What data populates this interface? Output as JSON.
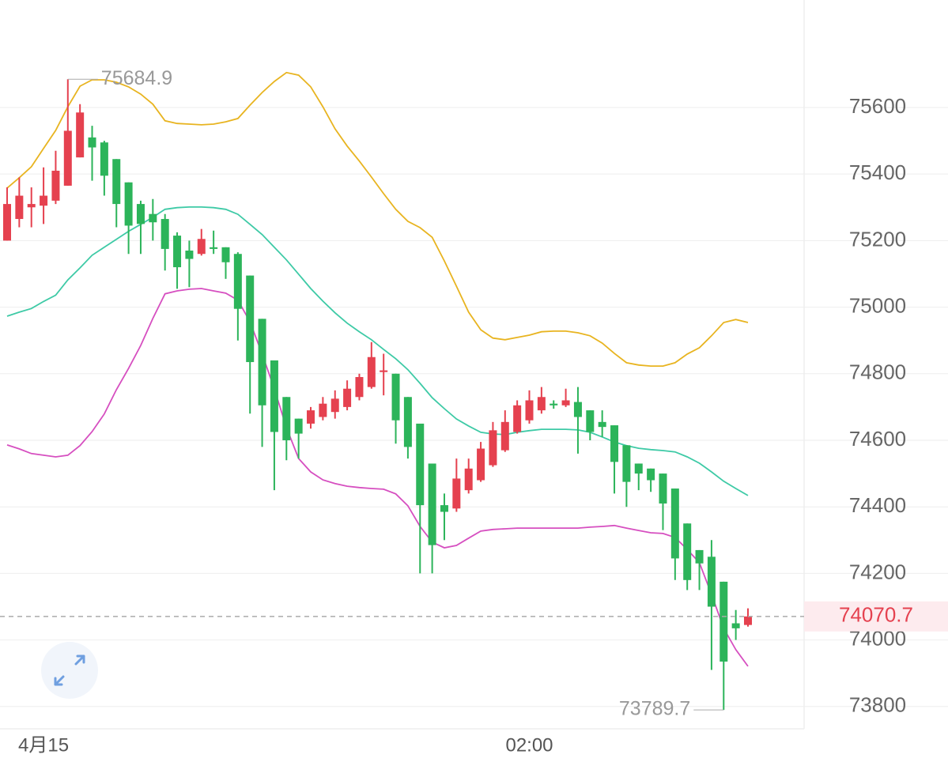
{
  "chart_data": {
    "type": "candlestick",
    "categories": [
      null,
      null,
      null,
      "4月15",
      null,
      null,
      null,
      null,
      null,
      null,
      null,
      null,
      null,
      null,
      null,
      null,
      null,
      null,
      null,
      null,
      null,
      null,
      null,
      null,
      null,
      null,
      null,
      null,
      null,
      null,
      null,
      null,
      null,
      null,
      null,
      null,
      null,
      null,
      null,
      null,
      null,
      null,
      null,
      "02:00",
      null,
      null,
      null,
      null,
      null,
      null,
      null,
      null,
      null,
      null,
      null,
      null,
      null,
      null,
      null,
      null,
      null,
      null
    ],
    "open": [
      75200,
      75265,
      75300,
      75305,
      75320,
      75365,
      75450,
      75510,
      75495,
      75445,
      75375,
      75310,
      75280,
      75265,
      75215,
      75170,
      75160,
      75180,
      75180,
      75160,
      75095,
      74965,
      74840,
      74730,
      74665,
      74650,
      74670,
      74685,
      74700,
      74730,
      74760,
      74805,
      74800,
      74730,
      74650,
      74530,
      74405,
      74395,
      74450,
      74480,
      74525,
      74570,
      74625,
      74660,
      74690,
      74710,
      74705,
      74715,
      74690,
      74655,
      74645,
      74585,
      74530,
      74515,
      74500,
      74455,
      74350,
      74270,
      74250,
      74175,
      74050,
      74045
    ],
    "high": [
      75360,
      75390,
      75360,
      75420,
      75470,
      75684.9,
      75610,
      75545,
      75500,
      75445,
      75375,
      75320,
      75325,
      75280,
      75225,
      75200,
      75235,
      75230,
      75180,
      75165,
      75095,
      74965,
      74840,
      74730,
      74665,
      74700,
      74730,
      74750,
      74780,
      74800,
      74895,
      74860,
      74800,
      74730,
      74650,
      74530,
      74440,
      74545,
      74545,
      74595,
      74655,
      74690,
      74720,
      74750,
      74760,
      74720,
      74755,
      74760,
      74690,
      74690,
      74645,
      74585,
      74530,
      74515,
      74500,
      74455,
      74350,
      74270,
      74300,
      74175,
      74090,
      74095
    ],
    "low": [
      75200,
      75240,
      75240,
      75250,
      75310,
      75365,
      75450,
      75380,
      75335,
      75240,
      75160,
      75160,
      75200,
      75110,
      75055,
      75060,
      75155,
      75160,
      75085,
      74900,
      74680,
      74580,
      74450,
      74540,
      74545,
      74635,
      74660,
      74665,
      74690,
      74720,
      74755,
      74735,
      74590,
      74545,
      74200,
      74200,
      74300,
      74385,
      74440,
      74475,
      74520,
      74565,
      74620,
      74650,
      74680,
      74695,
      74700,
      74560,
      74600,
      74610,
      74440,
      74400,
      74450,
      74445,
      74330,
      74180,
      74150,
      74150,
      73910,
      73789.7,
      74000,
      74040
    ],
    "close": [
      75310,
      75335,
      75310,
      75335,
      75410,
      75530,
      75585,
      75480,
      75395,
      75310,
      75245,
      75250,
      75255,
      75175,
      75120,
      75145,
      75205,
      75175,
      75135,
      74995,
      74835,
      74705,
      74625,
      74600,
      74620,
      74690,
      74710,
      74725,
      74755,
      74790,
      74850,
      74810,
      74660,
      74580,
      74405,
      74285,
      74385,
      74485,
      74515,
      74575,
      74630,
      74655,
      74705,
      74720,
      74730,
      74705,
      74720,
      74670,
      74625,
      74640,
      74535,
      74475,
      74500,
      74480,
      74410,
      74245,
      74180,
      74230,
      74100,
      73935,
      74035,
      74070.7
    ],
    "up_color": "#e5414f",
    "down_color": "#2cb45a",
    "bands": [
      {
        "color": "#e8b420",
        "values": [
          75358,
          75389,
          75422,
          75477,
          75531,
          75602,
          75664,
          75683,
          75683,
          75676,
          75662,
          75640,
          75610,
          75560,
          75552,
          75550,
          75548,
          75550,
          75557,
          75567,
          75607,
          75645,
          75678,
          75705,
          75697,
          75662,
          75602,
          75536,
          75484,
          75439,
          75391,
          75341,
          75294,
          75258,
          75239,
          75210,
          75139,
          75063,
          74985,
          74932,
          74907,
          74902,
          74909,
          74916,
          74926,
          74928,
          74928,
          74923,
          74914,
          74892,
          74861,
          74833,
          74826,
          74823,
          74823,
          74833,
          74859,
          74878,
          74914,
          74954,
          74963,
          74954
        ]
      },
      {
        "color": "#3ecaa6",
        "values": [
          74973,
          74985,
          74996,
          75017,
          75036,
          75082,
          75118,
          75156,
          75180,
          75204,
          75228,
          75249,
          75270,
          75294,
          75299,
          75301,
          75301,
          75299,
          75294,
          75279,
          75249,
          75218,
          75180,
          75142,
          75099,
          75056,
          75018,
          74983,
          74952,
          74926,
          74902,
          74873,
          74845,
          74812,
          74771,
          74728,
          74695,
          74664,
          74643,
          74624,
          74619,
          74617,
          74624,
          74629,
          74633,
          74633,
          74633,
          74631,
          74624,
          74610,
          74595,
          74584,
          74576,
          74572,
          74569,
          74565,
          74550,
          74531,
          74505,
          74477,
          74455,
          74434
        ]
      },
      {
        "color": "#d64fc0",
        "values": [
          74586,
          74574,
          74560,
          74555,
          74550,
          74555,
          74584,
          74626,
          74679,
          74752,
          74816,
          74885,
          74966,
          75040,
          75049,
          75054,
          75056,
          75049,
          75042,
          75021,
          74956,
          74859,
          74755,
          74638,
          74545,
          74505,
          74481,
          74470,
          74462,
          74458,
          74455,
          74453,
          74439,
          74403,
          74341,
          74294,
          74277,
          74284,
          74306,
          74327,
          74332,
          74334,
          74336,
          74336,
          74336,
          74336,
          74336,
          74336,
          74339,
          74341,
          74344,
          74336,
          74329,
          74322,
          74320,
          74308,
          74272,
          74232,
          74137,
          74035,
          73971,
          73921
        ]
      }
    ],
    "ylim": [
      73733,
      75923
    ],
    "yticks": [
      73800,
      74000,
      74200,
      74400,
      74600,
      74800,
      75000,
      75200,
      75400,
      75600
    ],
    "grid": true
  }
}
